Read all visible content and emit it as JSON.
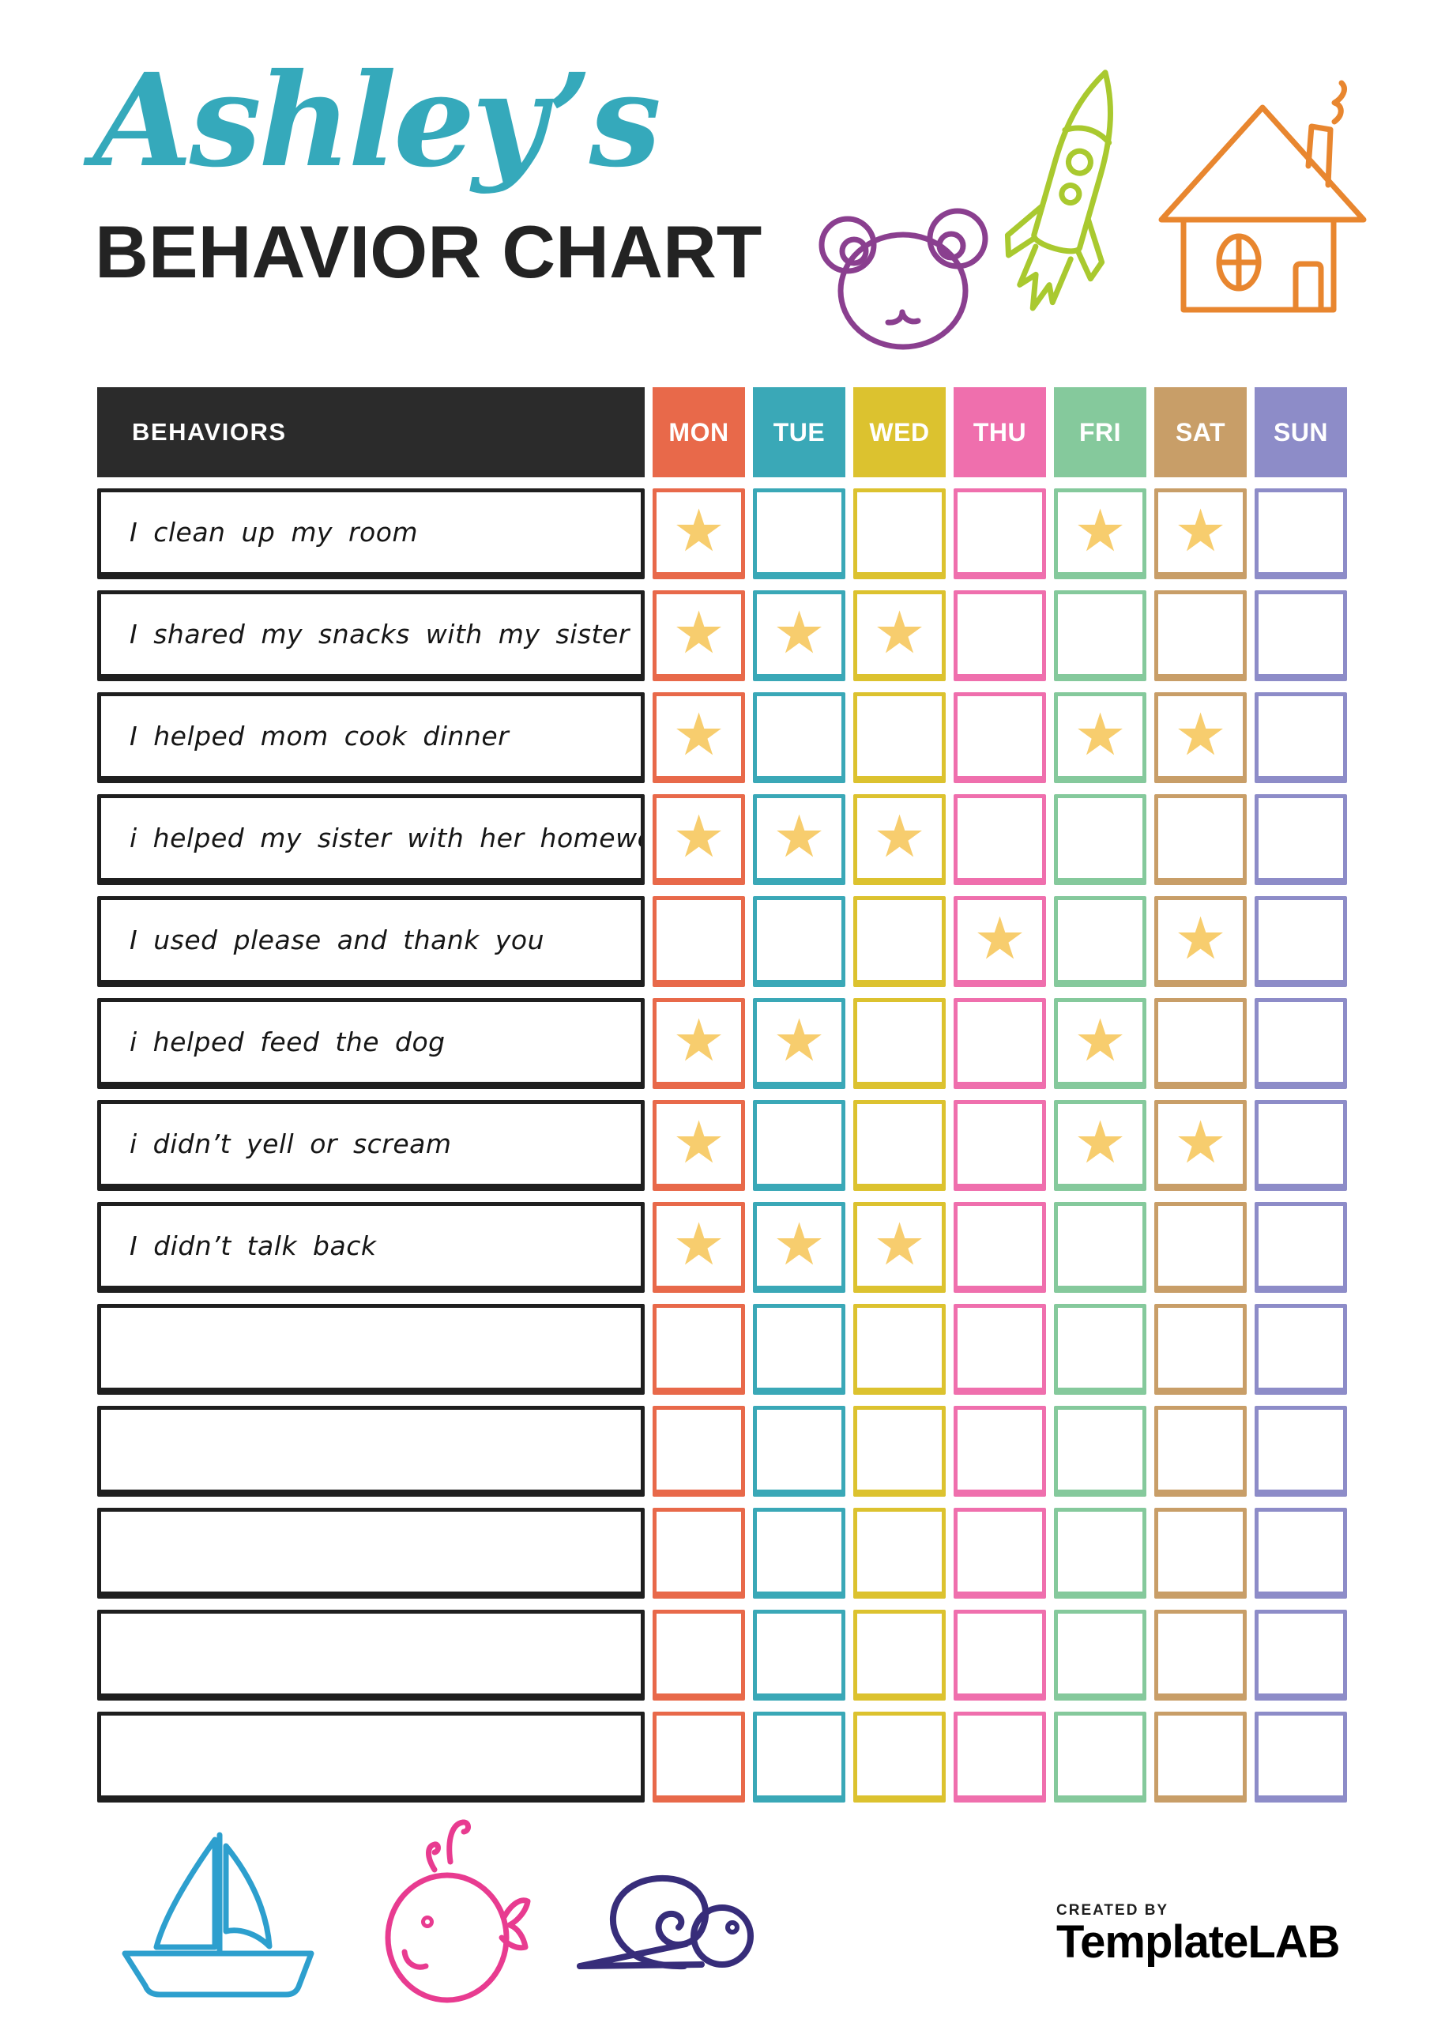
{
  "header": {
    "name": "Ashley’s",
    "title": "BEHAVIOR CHART",
    "name_color": "#35a9bb",
    "title_color": "#232323"
  },
  "decorations": {
    "top_icons": [
      "bear-icon",
      "rocket-icon",
      "house-icon"
    ],
    "bottom_icons": [
      "sailboat-icon",
      "whale-icon",
      "snail-icon"
    ],
    "colors": {
      "bear": "#8a3f8f",
      "rocket": "#a9c92f",
      "house": "#e8862f",
      "sailboat": "#2d9fce",
      "whale": "#e83b90",
      "snail": "#372d7a"
    }
  },
  "table": {
    "behaviors_label": "BEHAVIORS",
    "behaviors_header_bg": "#2b2b2b",
    "days": [
      "MON",
      "TUE",
      "WED",
      "THU",
      "FRI",
      "SAT",
      "SUN"
    ],
    "day_colors": {
      "MON": "#e8694a",
      "TUE": "#3aa8b7",
      "WED": "#dcc22f",
      "THU": "#ef6fad",
      "FRI": "#85c99c",
      "SAT": "#c89e68",
      "SUN": "#8d8cc8"
    },
    "star_color": "#f7cd6e",
    "star_glyph": "★",
    "rows": [
      {
        "behavior": "I clean up my room",
        "stars": [
          "MON",
          "FRI",
          "SAT"
        ]
      },
      {
        "behavior": "I shared my snacks with my sister",
        "stars": [
          "MON",
          "TUE",
          "WED"
        ]
      },
      {
        "behavior": "I helped mom cook dinner",
        "stars": [
          "MON",
          "FRI",
          "SAT"
        ]
      },
      {
        "behavior": "i helped my sister with her homework",
        "stars": [
          "MON",
          "TUE",
          "WED"
        ]
      },
      {
        "behavior": "I used please and thank you",
        "stars": [
          "THU",
          "SAT"
        ]
      },
      {
        "behavior": "i helped feed the dog",
        "stars": [
          "MON",
          "TUE",
          "FRI"
        ]
      },
      {
        "behavior": "i didn’t yell or scream",
        "stars": [
          "MON",
          "FRI",
          "SAT"
        ]
      },
      {
        "behavior": "I didn’t talk back",
        "stars": [
          "MON",
          "TUE",
          "WED"
        ]
      },
      {
        "behavior": "",
        "stars": []
      },
      {
        "behavior": "",
        "stars": []
      },
      {
        "behavior": "",
        "stars": []
      },
      {
        "behavior": "",
        "stars": []
      },
      {
        "behavior": "",
        "stars": []
      }
    ]
  },
  "footer": {
    "created_by": "CREATED BY",
    "brand_template": "Template",
    "brand_lab": "LAB",
    "brand_template_color": "#3f3f3f",
    "brand_lab_color": "#d6302c"
  }
}
